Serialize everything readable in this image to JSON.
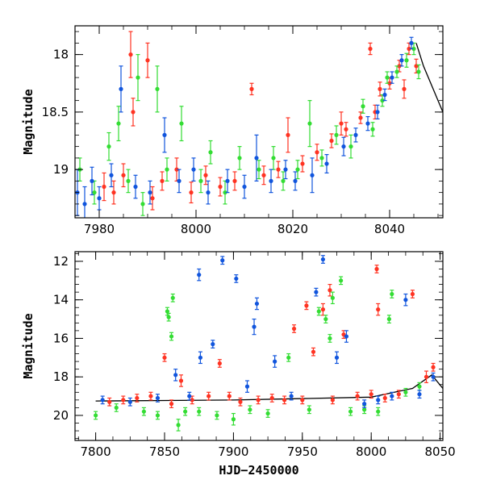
{
  "chart_data": [
    {
      "type": "scatter",
      "title": "",
      "xlabel": "",
      "ylabel": "Magnitude",
      "xlim": [
        7975,
        8051
      ],
      "ylim": [
        19.42,
        17.75
      ],
      "y_inverted": true,
      "x_ticks": [
        7980,
        8000,
        8020,
        8040
      ],
      "y_ticks": [
        18,
        18.5,
        19
      ],
      "x_tick_labels": [
        "7980",
        "8000",
        "8020",
        "8040"
      ],
      "y_tick_labels": [
        "18",
        "18.5",
        "19"
      ],
      "grid": false,
      "legend": "none",
      "error_bars": true,
      "series": [
        {
          "color": "#ff3322",
          "points": [
            [
              7981,
              19.15,
              0.12
            ],
            [
              7983,
              19.2,
              0.1
            ],
            [
              7985,
              19.05,
              0.1
            ],
            [
              7986.5,
              18.0,
              0.2
            ],
            [
              7987,
              18.5,
              0.12
            ],
            [
              7990,
              18.05,
              0.15
            ],
            [
              7991,
              19.25,
              0.1
            ],
            [
              7993,
              19.1,
              0.08
            ],
            [
              7996,
              19.0,
              0.1
            ],
            [
              7999,
              19.2,
              0.09
            ],
            [
              8002,
              19.05,
              0.08
            ],
            [
              8005,
              19.15,
              0.08
            ],
            [
              8008,
              19.1,
              0.08
            ],
            [
              8011.5,
              18.3,
              0.05
            ],
            [
              8014,
              19.05,
              0.08
            ],
            [
              8017,
              19.0,
              0.07
            ],
            [
              8019,
              18.7,
              0.15
            ],
            [
              8022,
              18.95,
              0.07
            ],
            [
              8025,
              18.85,
              0.07
            ],
            [
              8028,
              18.75,
              0.06
            ],
            [
              8030,
              18.6,
              0.1
            ],
            [
              8031,
              18.65,
              0.06
            ],
            [
              8034,
              18.55,
              0.05
            ],
            [
              8036,
              17.95,
              0.05
            ],
            [
              8037,
              18.5,
              0.06
            ],
            [
              8038,
              18.3,
              0.06
            ],
            [
              8040,
              18.25,
              0.05
            ],
            [
              8042,
              18.1,
              0.05
            ],
            [
              8043,
              18.3,
              0.08
            ],
            [
              8044,
              17.95,
              0.05
            ],
            [
              8045.5,
              18.1,
              0.06
            ]
          ]
        },
        {
          "color": "#33dd33",
          "points": [
            [
              7976,
              19.0,
              0.1
            ],
            [
              7979,
              19.2,
              0.1
            ],
            [
              7982,
              18.8,
              0.12
            ],
            [
              7984,
              18.6,
              0.15
            ],
            [
              7986,
              19.1,
              0.1
            ],
            [
              7988,
              18.2,
              0.2
            ],
            [
              7989,
              19.3,
              0.1
            ],
            [
              7992,
              18.3,
              0.2
            ],
            [
              7994,
              19.0,
              0.1
            ],
            [
              7997,
              18.6,
              0.15
            ],
            [
              8001,
              19.1,
              0.1
            ],
            [
              8003,
              18.85,
              0.1
            ],
            [
              8006,
              19.2,
              0.1
            ],
            [
              8009,
              18.9,
              0.1
            ],
            [
              8013,
              19.0,
              0.08
            ],
            [
              8016,
              18.9,
              0.1
            ],
            [
              8018,
              19.1,
              0.08
            ],
            [
              8021,
              19.0,
              0.08
            ],
            [
              8023.5,
              18.6,
              0.2
            ],
            [
              8026,
              18.9,
              0.07
            ],
            [
              8029,
              18.7,
              0.08
            ],
            [
              8032,
              18.8,
              0.1
            ],
            [
              8034.5,
              18.45,
              0.06
            ],
            [
              8036.5,
              18.65,
              0.06
            ],
            [
              8038.5,
              18.4,
              0.05
            ],
            [
              8039.5,
              18.2,
              0.05
            ],
            [
              8041.5,
              18.15,
              0.05
            ],
            [
              8043.5,
              18.05,
              0.06
            ],
            [
              8045,
              17.95,
              0.05
            ],
            [
              8046,
              18.15,
              0.06
            ]
          ]
        },
        {
          "color": "#1155dd",
          "points": [
            [
              7975.5,
              19.2,
              0.2
            ],
            [
              7977,
              19.3,
              0.15
            ],
            [
              7978.5,
              19.1,
              0.12
            ],
            [
              7980,
              19.25,
              0.1
            ],
            [
              7982.5,
              19.05,
              0.1
            ],
            [
              7984.5,
              18.3,
              0.2
            ],
            [
              7987.5,
              19.15,
              0.1
            ],
            [
              7990.5,
              19.2,
              0.1
            ],
            [
              7993.5,
              18.7,
              0.15
            ],
            [
              7996.5,
              19.1,
              0.1
            ],
            [
              7999.5,
              19.0,
              0.1
            ],
            [
              8002.5,
              19.2,
              0.1
            ],
            [
              8006.5,
              19.1,
              0.1
            ],
            [
              8010,
              19.15,
              0.1
            ],
            [
              8012.5,
              18.9,
              0.2
            ],
            [
              8015.5,
              19.1,
              0.1
            ],
            [
              8018.5,
              19.0,
              0.08
            ],
            [
              8020.5,
              19.1,
              0.08
            ],
            [
              8024,
              19.05,
              0.15
            ],
            [
              8027,
              18.95,
              0.08
            ],
            [
              8030.5,
              18.8,
              0.08
            ],
            [
              8033,
              18.7,
              0.06
            ],
            [
              8035.5,
              18.6,
              0.06
            ],
            [
              8037.5,
              18.5,
              0.06
            ],
            [
              8039,
              18.35,
              0.05
            ],
            [
              8040.5,
              18.2,
              0.05
            ],
            [
              8042.5,
              18.05,
              0.05
            ],
            [
              8044.5,
              17.9,
              0.05
            ]
          ]
        }
      ],
      "model_curve": [
        [
          8045.5,
          17.9
        ],
        [
          8047,
          18.1
        ],
        [
          8049,
          18.3
        ],
        [
          8051,
          18.5
        ]
      ]
    },
    {
      "type": "scatter",
      "title": "",
      "xlabel": "HJD−2450000",
      "ylabel": "Magnitude",
      "xlim": [
        7785,
        8052
      ],
      "ylim": [
        21.3,
        11.5
      ],
      "y_inverted": true,
      "x_ticks": [
        7800,
        7850,
        7900,
        7950,
        8000,
        8050
      ],
      "y_ticks": [
        12,
        14,
        16,
        18,
        20
      ],
      "x_tick_labels": [
        "7800",
        "7850",
        "7900",
        "7950",
        "8000",
        "8050"
      ],
      "y_tick_labels": [
        "12",
        "14",
        "16",
        "18",
        "20"
      ],
      "grid": false,
      "legend": "none",
      "error_bars": true,
      "series": [
        {
          "color": "#ff3322",
          "points": [
            [
              7810,
              19.3,
              0.2
            ],
            [
              7820,
              19.2,
              0.2
            ],
            [
              7830,
              19.1,
              0.2
            ],
            [
              7840,
              19.0,
              0.2
            ],
            [
              7850,
              17.0,
              0.2
            ],
            [
              7855,
              19.4,
              0.2
            ],
            [
              7862,
              18.2,
              0.3
            ],
            [
              7870,
              19.2,
              0.2
            ],
            [
              7882,
              19.0,
              0.2
            ],
            [
              7890,
              17.3,
              0.2
            ],
            [
              7897,
              19.0,
              0.2
            ],
            [
              7905,
              19.3,
              0.2
            ],
            [
              7918,
              19.2,
              0.2
            ],
            [
              7928,
              19.1,
              0.2
            ],
            [
              7937,
              19.2,
              0.2
            ],
            [
              7944,
              15.5,
              0.2
            ],
            [
              7950,
              19.2,
              0.2
            ],
            [
              7953,
              14.3,
              0.2
            ],
            [
              7958,
              16.7,
              0.2
            ],
            [
              7965,
              14.5,
              0.3
            ],
            [
              7970,
              13.5,
              0.3
            ],
            [
              7972,
              19.2,
              0.2
            ],
            [
              7980,
              15.8,
              0.2
            ],
            [
              7990,
              19.0,
              0.2
            ],
            [
              8000,
              18.9,
              0.2
            ],
            [
              8004,
              12.4,
              0.2
            ],
            [
              8005,
              14.5,
              0.3
            ],
            [
              8010,
              19.1,
              0.2
            ],
            [
              8020,
              18.9,
              0.2
            ],
            [
              8030,
              13.7,
              0.2
            ],
            [
              8040,
              18.0,
              0.3
            ],
            [
              8045,
              17.5,
              0.2
            ]
          ]
        },
        {
          "color": "#33dd33",
          "points": [
            [
              7800,
              20.0,
              0.2
            ],
            [
              7815,
              19.6,
              0.2
            ],
            [
              7835,
              19.8,
              0.2
            ],
            [
              7845,
              20.0,
              0.2
            ],
            [
              7852,
              14.6,
              0.2
            ],
            [
              7853,
              14.9,
              0.2
            ],
            [
              7855,
              15.9,
              0.2
            ],
            [
              7856,
              13.9,
              0.2
            ],
            [
              7860,
              20.5,
              0.3
            ],
            [
              7865,
              19.8,
              0.2
            ],
            [
              7875,
              19.8,
              0.2
            ],
            [
              7888,
              20.0,
              0.2
            ],
            [
              7900,
              20.2,
              0.3
            ],
            [
              7912,
              19.7,
              0.2
            ],
            [
              7925,
              19.9,
              0.2
            ],
            [
              7940,
              17.0,
              0.2
            ],
            [
              7955,
              19.7,
              0.2
            ],
            [
              7962,
              14.6,
              0.2
            ],
            [
              7967,
              15.0,
              0.2
            ],
            [
              7970,
              16.0,
              0.2
            ],
            [
              7972,
              13.9,
              0.3
            ],
            [
              7978,
              13.0,
              0.2
            ],
            [
              7985,
              19.8,
              0.2
            ],
            [
              7995,
              19.7,
              0.2
            ],
            [
              8005,
              19.8,
              0.2
            ],
            [
              8013,
              15.0,
              0.2
            ],
            [
              8015,
              13.7,
              0.2
            ],
            [
              8025,
              18.8,
              0.2
            ],
            [
              8035,
              18.5,
              0.2
            ]
          ]
        },
        {
          "color": "#1155dd",
          "points": [
            [
              7805,
              19.2,
              0.2
            ],
            [
              7825,
              19.3,
              0.2
            ],
            [
              7845,
              19.1,
              0.2
            ],
            [
              7858,
              17.9,
              0.3
            ],
            [
              7868,
              19.0,
              0.2
            ],
            [
              7875,
              12.7,
              0.3
            ],
            [
              7876,
              17.0,
              0.3
            ],
            [
              7885,
              16.3,
              0.2
            ],
            [
              7892,
              11.95,
              0.2
            ],
            [
              7902,
              12.9,
              0.2
            ],
            [
              7910,
              18.5,
              0.3
            ],
            [
              7915,
              15.4,
              0.4
            ],
            [
              7917,
              14.2,
              0.3
            ],
            [
              7930,
              17.2,
              0.3
            ],
            [
              7942,
              19.0,
              0.2
            ],
            [
              7960,
              13.6,
              0.2
            ],
            [
              7965,
              11.9,
              0.2
            ],
            [
              7975,
              17.0,
              0.3
            ],
            [
              7982,
              15.9,
              0.3
            ],
            [
              7995,
              19.4,
              0.2
            ],
            [
              8005,
              19.2,
              0.2
            ],
            [
              8015,
              19.0,
              0.2
            ],
            [
              8025,
              14.0,
              0.3
            ],
            [
              8035,
              18.9,
              0.2
            ],
            [
              8045,
              18.0,
              0.2
            ]
          ]
        }
      ],
      "model_curve": [
        [
          7800,
          19.25
        ],
        [
          7900,
          19.2
        ],
        [
          8000,
          19.05
        ],
        [
          8030,
          18.6
        ],
        [
          8044,
          17.9
        ],
        [
          8052,
          18.6
        ]
      ]
    }
  ]
}
